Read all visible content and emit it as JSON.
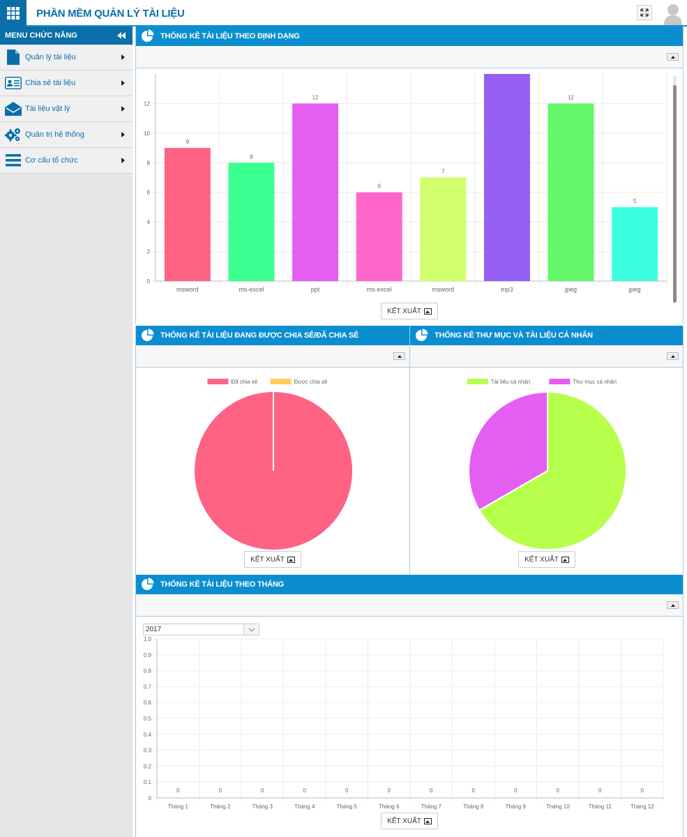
{
  "app": {
    "title": "PHẦN MỀM QUẢN LÝ TÀI LIỆU"
  },
  "sidebar": {
    "header": "MENU CHỨC NĂNG",
    "items": [
      {
        "label": "Quản lý tài liệu",
        "icon": "document-icon"
      },
      {
        "label": "Chia sẻ tài liệu",
        "icon": "id-card-icon"
      },
      {
        "label": "Tài liệu vật lý",
        "icon": "envelope-icon"
      },
      {
        "label": "Quản trị hệ thống",
        "icon": "gears-icon"
      },
      {
        "label": "Cơ cấu tổ chức",
        "icon": "bars-icon"
      }
    ]
  },
  "panels": {
    "format": {
      "title": "THỐNG KÊ TÀI LIỆU THEO ĐỊNH DẠNG",
      "export_label": "KẾT XUẤT"
    },
    "shared": {
      "title": "THỐNG KÊ TÀI LIỆU ĐANG ĐƯỢC CHIA SẺ/ĐÃ CHIA SẺ",
      "export_label": "KẾT XUẤT"
    },
    "personal": {
      "title": "THỐNG KÊ THƯ MỤC VÀ TÀI LIỆU CÁ NHÂN",
      "export_label": "KẾT XUẤT"
    },
    "monthly": {
      "title": "THỐNG KÊ TÀI LIỆU THEO THÁNG",
      "export_label": "KẾT XUẤT",
      "year": "2017"
    }
  },
  "colors": {
    "primary": "#0a8ecf",
    "dark": "#0a6fa8"
  },
  "chart_data": [
    {
      "type": "bar",
      "categories": [
        "msword",
        "ms-excel",
        "ppt",
        "ms-excel",
        "msword",
        "mp3",
        "jpeg",
        "jpeg"
      ],
      "values": [
        9,
        8,
        12,
        6,
        7,
        15,
        12,
        5
      ],
      "value_labels": [
        "9",
        "8",
        "12",
        "6",
        "7",
        "",
        "12",
        "5"
      ],
      "colors": [
        "#ff6384",
        "#3bff8f",
        "#e45ef2",
        "#ff66cc",
        "#d2ff6e",
        "#9660f2",
        "#64f76a",
        "#3dffe0"
      ],
      "yticks": [
        0,
        2,
        4,
        6,
        8,
        10,
        12
      ],
      "ylim": [
        0,
        14
      ],
      "grid": true
    },
    {
      "type": "pie",
      "labels": [
        "Đã chia sẻ",
        "Được chia sẻ"
      ],
      "values": [
        1,
        0
      ],
      "colors": [
        "#ff6384",
        "#ffce56"
      ],
      "legend": "top"
    },
    {
      "type": "pie",
      "labels": [
        "Tài liệu cá nhân",
        "Thư mục cá nhân"
      ],
      "values": [
        2,
        1
      ],
      "colors": [
        "#b6ff4a",
        "#e45ef2"
      ],
      "legend": "top"
    },
    {
      "type": "bar",
      "categories": [
        "Tháng 1",
        "Tháng 2",
        "Tháng 3",
        "Tháng 4",
        "Tháng 5",
        "Tháng 6",
        "Tháng 7",
        "Tháng 8",
        "Tháng 9",
        "Tháng 10",
        "Tháng 11",
        "Tháng 12"
      ],
      "values": [
        0,
        0,
        0,
        0,
        0,
        0,
        0,
        0,
        0,
        0,
        0,
        0
      ],
      "yticks": [
        "0",
        "0.1",
        "0.2",
        "0.3",
        "0.4",
        "0.5",
        "0.6",
        "0.7",
        "0.8",
        "0.9",
        "1.0"
      ],
      "ylim": [
        0,
        1
      ],
      "grid": true
    }
  ]
}
